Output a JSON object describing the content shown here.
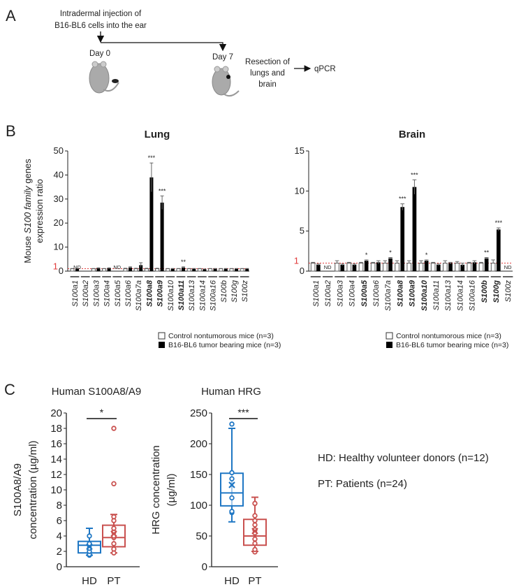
{
  "panel_a": {
    "label": "A",
    "injection_line1": "Intradermal injection of",
    "injection_line2": "B16-BL6 cells into the ear",
    "day0": "Day 0",
    "day7": "Day 7",
    "resection_line1": "Resection of",
    "resection_line2": "lungs and",
    "resection_line3": "brain",
    "qpcr": "qPCR"
  },
  "panel_b": {
    "label": "B",
    "ylabel_line1_pre": "Mouse ",
    "ylabel_line1_italic": "S100 family",
    "ylabel_line1_post": " genes",
    "ylabel_line2": "expression ratio",
    "reference_label": "1",
    "legend": {
      "control": "Control nontumorous mice (n=3)",
      "tumor": "B16-BL6 tumor bearing mice (n=3)"
    }
  },
  "colors": {
    "reference_line": "#e03a3a",
    "hd": "#1f77c4",
    "pt": "#c9514f",
    "tumor_bar": "#000000",
    "control_bar": "#ffffff"
  },
  "chart_data": [
    {
      "type": "bar",
      "title": "Lung",
      "ylabel": "Mouse S100 family genes expression ratio",
      "ylim": [
        0,
        50
      ],
      "yticks": [
        0,
        10,
        20,
        30,
        40,
        50
      ],
      "reference_line": 1,
      "categories": [
        "S100a1",
        "S100a2",
        "S100a3",
        "S100a4",
        "S100a5",
        "S100a6",
        "S100a7a",
        "S100a8",
        "S100a9",
        "S100a10",
        "S100a11",
        "S100a13",
        "S100a14",
        "S100a16",
        "S100b",
        "S100g",
        "S100z"
      ],
      "bold": [
        false,
        false,
        false,
        false,
        false,
        false,
        false,
        true,
        true,
        false,
        true,
        false,
        false,
        false,
        false,
        false,
        false
      ],
      "series": [
        {
          "name": "Control nontumorous mice (n=3)",
          "values": [
            1,
            null,
            1,
            1,
            null,
            1,
            1,
            1,
            1,
            1,
            1,
            1,
            1,
            1,
            1,
            1,
            1
          ],
          "errors": [
            0.1,
            null,
            0.1,
            0.1,
            null,
            0.2,
            0.2,
            0.2,
            0.2,
            0.1,
            0.1,
            0.1,
            0.1,
            0.1,
            0.1,
            0.1,
            0.1
          ]
        },
        {
          "name": "B16-BL6 tumor bearing mice (n=3)",
          "values": [
            1,
            null,
            1.2,
            1.2,
            null,
            1.5,
            2.5,
            39,
            28.5,
            1,
            1.5,
            1,
            0.8,
            1,
            1,
            1,
            1
          ],
          "errors": [
            0.1,
            null,
            0.2,
            0.2,
            null,
            0.3,
            1.0,
            6,
            2.8,
            0.1,
            0.3,
            0.1,
            0.1,
            0.1,
            0.1,
            0.1,
            0.1
          ]
        }
      ],
      "nd": [
        "ND",
        "",
        "",
        "",
        "ND",
        "",
        "",
        "",
        "",
        "",
        "",
        "",
        "",
        "",
        "",
        "",
        ""
      ],
      "significance": [
        "",
        "",
        "",
        "",
        "",
        "",
        "",
        "***",
        "***",
        "",
        "**",
        "",
        "",
        "",
        "",
        "",
        ""
      ]
    },
    {
      "type": "bar",
      "title": "Brain",
      "ylim": [
        0,
        15
      ],
      "yticks": [
        0,
        5,
        10,
        15
      ],
      "reference_line": 1,
      "categories": [
        "S100a1",
        "S100a2",
        "S100a3",
        "S100a4",
        "S100a5",
        "S100a6",
        "S100a7a",
        "S100a8",
        "S100a9",
        "S100a10",
        "S100a11",
        "S100a13",
        "S100a14",
        "S100a16",
        "S100b",
        "S100g",
        "S100z"
      ],
      "bold": [
        false,
        false,
        false,
        false,
        true,
        false,
        false,
        true,
        true,
        true,
        false,
        false,
        false,
        false,
        true,
        true,
        false
      ],
      "series": [
        {
          "name": "Control nontumorous mice (n=3)",
          "values": [
            1,
            null,
            1,
            1,
            1,
            1,
            1,
            1,
            1,
            1,
            1,
            1,
            1,
            1,
            1,
            1,
            null
          ],
          "errors": [
            0.1,
            null,
            0.3,
            0.1,
            0.1,
            0.1,
            0.3,
            0.3,
            0.3,
            0.3,
            0.1,
            0.3,
            0.2,
            0.1,
            0.1,
            0.4,
            null
          ]
        },
        {
          "name": "B16-BL6 tumor bearing mice (n=3)",
          "values": [
            0.8,
            null,
            0.8,
            0.8,
            1.3,
            1.1,
            1.6,
            8.0,
            10.5,
            1.3,
            0.8,
            1.0,
            0.8,
            1.1,
            1.6,
            5.2,
            null
          ],
          "errors": [
            0.1,
            null,
            0.1,
            0.1,
            0.1,
            0.2,
            0.1,
            0.4,
            0.9,
            0.1,
            0.1,
            0.1,
            0.2,
            0.2,
            0.1,
            0.2,
            null
          ]
        }
      ],
      "nd": [
        "",
        "ND",
        "",
        "",
        "",
        "",
        "",
        "",
        "",
        "",
        "",
        "",
        "",
        "",
        "",
        "",
        "ND"
      ],
      "significance": [
        "",
        "",
        "",
        "",
        "*",
        "",
        "*",
        "***",
        "***",
        "*",
        "",
        "",
        "",
        "",
        "**",
        "***",
        ""
      ]
    },
    {
      "type": "box",
      "title": "Human S100A8/A9",
      "ylabel": "S100A8/A9 concentration (µg/ml)",
      "ylim": [
        0,
        20
      ],
      "yticks": [
        0,
        2,
        4,
        6,
        8,
        10,
        12,
        14,
        16,
        18,
        20
      ],
      "categories": [
        "HD",
        "PT"
      ],
      "significance": "*",
      "boxes": [
        {
          "name": "HD",
          "min": 1.5,
          "q1": 1.8,
          "median": 2.8,
          "q3": 3.3,
          "max": 5.0,
          "mean": 2.6,
          "points": [
            1.5,
            1.6,
            2.0,
            2.4,
            2.8,
            3.0,
            4.0
          ]
        },
        {
          "name": "PT",
          "min": 1.8,
          "q1": 2.6,
          "median": 3.8,
          "q3": 5.4,
          "max": 6.8,
          "mean": 4.3,
          "points": [
            1.8,
            2.3,
            3.0,
            3.8,
            4.0,
            4.5,
            5.0,
            6.0,
            6.5,
            10.8,
            18.0
          ]
        }
      ]
    },
    {
      "type": "box",
      "title": "Human HRG",
      "ylabel": "HRG concentration (µg/ml)",
      "ylim": [
        0,
        250
      ],
      "yticks": [
        0,
        50,
        100,
        150,
        200,
        250
      ],
      "categories": [
        "HD",
        "PT"
      ],
      "significance": "***",
      "boxes": [
        {
          "name": "HD",
          "min": 73,
          "q1": 99,
          "median": 120,
          "q3": 152,
          "max": 225,
          "mean": 133,
          "points": [
            88,
            90,
            112,
            143,
            153,
            232
          ]
        },
        {
          "name": "PT",
          "min": 25,
          "q1": 35,
          "median": 50,
          "q3": 77,
          "max": 113,
          "mean": 58,
          "points": [
            24,
            28,
            38,
            45,
            55,
            60,
            68,
            75,
            83,
            103
          ]
        }
      ]
    }
  ],
  "panel_c": {
    "label": "C",
    "ylabel_left_line1": "S100A8/A9",
    "ylabel_left_line2": "concentration (µg/ml)",
    "ylabel_right_line1": "HRG concentration",
    "ylabel_right_line2": "(µg/ml)",
    "legend_hd": "HD: Healthy volunteer donors (n=12)",
    "legend_pt": "PT: Patients (n=24)"
  }
}
